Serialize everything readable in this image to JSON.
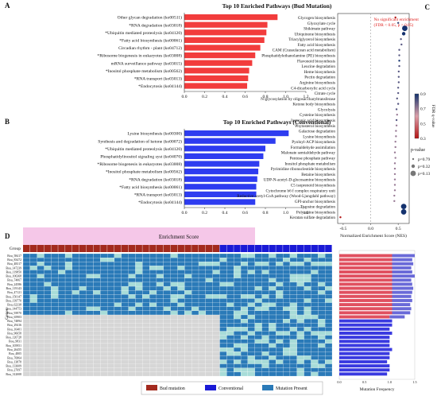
{
  "panelA": {
    "letter": "A",
    "title": "Top 10 Enriched Pathways (Bud Mutation)",
    "color": "#f23c3c",
    "xlim": [
      0,
      1.2
    ],
    "ticks": [
      "0.0",
      "0.2",
      "0.4",
      "0.6",
      "0.8",
      "1.0",
      "1.2"
    ],
    "chart_data": {
      "type": "bar",
      "categories": [
        "Other glycan degradation (ko00511)",
        "*RNA degradation (ko03018)",
        "*Ubiquitin mediated proteolysis (ko04120)",
        "*Fatty acid biosynthesis (ko00061)",
        "Circadian rhythm - plant (ko04712)",
        "*Ribosome biogenesis in eukaryotes (ko03008)",
        "mRNA surveillance pathway (ko03015)",
        "*Inositol phosphate metabolism (ko00562)",
        "*RNA transport (ko03013)",
        "*Endocytosis (ko04144)"
      ],
      "values": [
        0.92,
        0.82,
        0.81,
        0.79,
        0.75,
        0.7,
        0.67,
        0.64,
        0.63,
        0.62
      ]
    }
  },
  "panelB": {
    "letter": "B",
    "title": "Top 10 Enriched Pathways (Conventional)",
    "color": "#2e3cf0",
    "xlim": [
      0,
      1.2
    ],
    "ticks": [
      "0.0",
      "0.2",
      "0.4",
      "0.6",
      "0.8",
      "1.0",
      "1.2"
    ],
    "chart_data": {
      "type": "bar",
      "categories": [
        "Lysine biosynthesis (ko00300)",
        "Synthesis and degradation of ketone (ko00072)",
        "*Ubiquitin mediated proteolysis (ko04120)",
        "Phosphatidylinositol signaling syst (ko04070)",
        "*Ribosome biogenesis in eukaryotes (ko03008)",
        "*Inositol phosphate metabolism (ko00562)",
        "*RNA degradation (ko03018)",
        "*Fatty acid biosynthesis (ko00061)",
        "*RNA transport (ko03013)",
        "*Endocytosis (ko04144)"
      ],
      "values": [
        1.03,
        0.9,
        0.8,
        0.78,
        0.74,
        0.73,
        0.72,
        0.71,
        0.71,
        0.7
      ]
    }
  },
  "panelC": {
    "letter": "C",
    "note_line1": "No significant enrichment",
    "note_line2": "(FDR < 0.05, p > 0.05)",
    "xlabel": "Normalized Enrichment Score (NES)",
    "xticks": [
      "-0.5",
      "0.0",
      "0.5"
    ],
    "xlim": [
      -0.6,
      0.7
    ],
    "colorbar_label": "FDR q-value",
    "colorbar_ticks": [
      "0.3",
      "0.5",
      "0.7",
      "0.9"
    ],
    "size_legend_title": "p-value",
    "size_legend_items": [
      "p=0.79",
      "p=0.32",
      "p=0.13"
    ],
    "chart_data": {
      "type": "scatter",
      "categories": [
        "Glycogen biosynthesis",
        "Glyoxylate cycle",
        "Shikimate pathway",
        "Ubiquinone biosynthesis",
        "Triacylglycerol biosynthesis",
        "Fatty acid biosynthesis",
        "CAM (Crassulacean acid metabolism)",
        "Phosphatidylethanolamine (PE) biosynthesis",
        "Flavonoid biosynthesis",
        "Leucine degradation",
        "Heme biosynthesis",
        "Pectin degradation",
        "Arginine biosynthesis",
        "C4-dicarboxylic acid cycle",
        "Citrate cycle",
        "N-glycosylation by oligosaccharyltransferase",
        "Ketone body biosynthesis",
        "Glycolysis",
        "Cysteine biosynthesis",
        "Jasmonic acid biosynthesis",
        "Phytosterol biosynthesis",
        "Galactose degradation",
        "Lysine biosynthesis",
        "Pyoloyl-ACP biosynthesis",
        "Formaldehyde assimilation",
        "Malonate semialdehyde pathway",
        "Pentose phosphate pathway",
        "Inositol phosphate metabolism",
        "Pyrimidine ribonucleotide biosynthesis",
        "Betaine biosynthesis",
        "UDP-N-acetyl-D-glucosamine biosynthesis",
        "C5 isoprenoid biosynthesis",
        "Cytochrome b6 f complex respiratory unit",
        "Reductive acetyl-CoA pathway (Wood-Ljungdahl pathway)",
        "GPI-anchor biosynthesis",
        "Tyrosine degradation",
        "Polyamine biosynthesis",
        "Keratan sulfate degradation"
      ],
      "nes": [
        0.45,
        0.5,
        0.62,
        0.6,
        0.55,
        0.56,
        0.52,
        0.52,
        0.52,
        0.52,
        0.51,
        0.51,
        0.51,
        0.5,
        0.5,
        0.48,
        0.5,
        0.47,
        0.48,
        0.47,
        0.47,
        0.46,
        0.46,
        0.45,
        0.45,
        0.44,
        0.45,
        0.44,
        0.44,
        0.44,
        0.44,
        0.44,
        0.44,
        0.43,
        0.43,
        0.6,
        0.6,
        -0.55
      ],
      "fdr": [
        0.3,
        0.85,
        0.9,
        0.9,
        0.8,
        0.8,
        0.8,
        0.8,
        0.9,
        0.8,
        0.8,
        0.8,
        0.8,
        0.8,
        0.8,
        0.8,
        0.8,
        0.8,
        0.7,
        0.8,
        0.7,
        0.7,
        0.7,
        0.7,
        0.7,
        0.7,
        0.7,
        0.7,
        0.7,
        0.7,
        0.7,
        0.7,
        0.7,
        0.7,
        0.7,
        0.9,
        0.9,
        0.3
      ],
      "p": [
        0.79,
        0.79,
        0.13,
        0.32,
        0.79,
        0.79,
        0.79,
        0.79,
        0.79,
        0.79,
        0.79,
        0.79,
        0.79,
        0.79,
        0.79,
        0.79,
        0.79,
        0.79,
        0.79,
        0.79,
        0.79,
        0.79,
        0.79,
        0.79,
        0.79,
        0.79,
        0.79,
        0.79,
        0.79,
        0.79,
        0.79,
        0.79,
        0.79,
        0.79,
        0.79,
        0.13,
        0.13,
        0.79
      ]
    }
  },
  "panelD": {
    "letter": "D",
    "heatmap_title": "Enrichment Score",
    "group_label": "Group",
    "genes_label": "Genes",
    "freq_label": "Mutation Frequency",
    "freq_ticks": [
      "0.0",
      "0.5",
      "1.0",
      "1.5"
    ],
    "legend": [
      "Bud mutation",
      "Conventional",
      "Mutation Present"
    ],
    "colors": {
      "bud": "#a32a1e",
      "conv": "#1a1ad6",
      "present": "#2a7ab8",
      "light": "#a8dcd8",
      "absent": "#d6d6d6",
      "pink": "#f5c7e8"
    },
    "chart_data": {
      "type": "heatmap",
      "genes": [
        "Bou_58417",
        "Bou_83472",
        "Bou_48317",
        "Bou_147239",
        "Bou_119850",
        "Bou_106368",
        "Bou_74067",
        "Bou_24586",
        "Bou_119143",
        "Bou_47121",
        "Bou_150147",
        "Bou_139770",
        "Bou_62338",
        "Bou_144753",
        "Bou_93970",
        "Bou_65903",
        "Bou_74894",
        "Bou_29416",
        "Bou_16401",
        "Bou_96658",
        "Bou_126728",
        "Bou_9831",
        "Bou_105951",
        "Bou_26455",
        "Bou_4805",
        "Bou_76864",
        "Bou_13878",
        "Bou_133609",
        "Bou_27697",
        "Bou_312008"
      ],
      "n_bud": 28,
      "n_conv": 16,
      "freq_bud": [
        1.05,
        1.05,
        1.05,
        1.05,
        1.05,
        1.05,
        1.05,
        1.05,
        1.05,
        1.05,
        1.05,
        1.05,
        1.05,
        1.05,
        1.05,
        1.0,
        0.0,
        0.0,
        0.0,
        0.0,
        0.0,
        0.0,
        0.0,
        0.0,
        0.0,
        0.0,
        0.0,
        0.0,
        0.0,
        0.0
      ],
      "freq_conv": [
        0.45,
        0.4,
        0.42,
        0.38,
        0.4,
        0.45,
        0.38,
        0.4,
        0.42,
        0.4,
        0.38,
        0.4,
        0.36,
        0.38,
        0.36,
        0.3,
        1.05,
        1.05,
        1.0,
        1.05,
        1.0,
        1.0,
        1.0,
        1.05,
        1.0,
        1.0,
        0.95,
        1.0,
        1.0,
        0.95
      ]
    }
  }
}
